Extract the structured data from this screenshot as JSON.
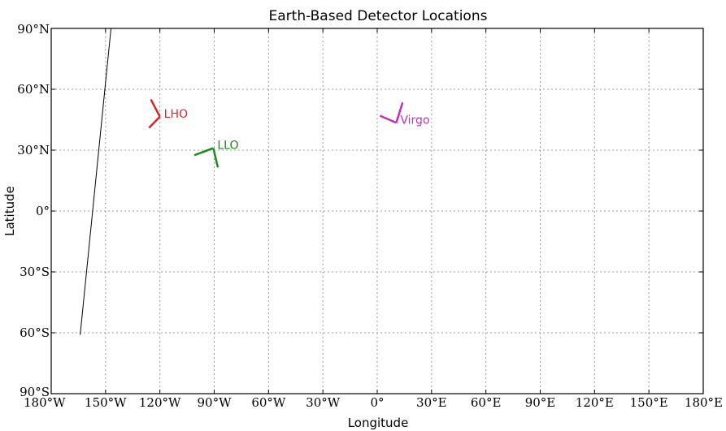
{
  "chart_data": {
    "type": "scatter",
    "title": "Earth-Based Detector Locations",
    "xlabel": "Longitude",
    "ylabel": "Latitude",
    "xlim": [
      -180,
      180
    ],
    "ylim": [
      -90,
      90
    ],
    "grid": true,
    "x_ticks": [
      {
        "value": -180,
        "label": "180°W"
      },
      {
        "value": -150,
        "label": "150°W"
      },
      {
        "value": -120,
        "label": "120°W"
      },
      {
        "value": -90,
        "label": "90°W"
      },
      {
        "value": -60,
        "label": "60°W"
      },
      {
        "value": -30,
        "label": "30°W"
      },
      {
        "value": 0,
        "label": "0°"
      },
      {
        "value": 30,
        "label": "30°E"
      },
      {
        "value": 60,
        "label": "60°E"
      },
      {
        "value": 90,
        "label": "90°E"
      },
      {
        "value": 120,
        "label": "120°E"
      },
      {
        "value": 150,
        "label": "150°E"
      },
      {
        "value": 180,
        "label": "180°E"
      }
    ],
    "y_ticks": [
      {
        "value": 90,
        "label": "90°N"
      },
      {
        "value": 60,
        "label": "60°N"
      },
      {
        "value": 30,
        "label": "30°N"
      },
      {
        "value": 0,
        "label": "0°"
      },
      {
        "value": -30,
        "label": "30°S"
      },
      {
        "value": -60,
        "label": "60°S"
      },
      {
        "value": -90,
        "label": "90°S"
      }
    ],
    "detectors": [
      {
        "name": "LHO",
        "color": "#d62728",
        "vertex": [
          -120,
          46.5
        ],
        "arm1": [
          -126,
          41
        ],
        "arm2": [
          -125,
          55
        ]
      },
      {
        "name": "LLO",
        "color": "#1a8a1a",
        "vertex": [
          -90.5,
          31
        ],
        "arm1": [
          -101,
          27.5
        ],
        "arm2": [
          -88,
          21.5
        ]
      },
      {
        "name": "Virgo",
        "color": "#c030c0",
        "vertex": [
          10.5,
          43.5
        ],
        "arm1": [
          1.5,
          47
        ],
        "arm2": [
          14,
          53.5
        ]
      }
    ],
    "line": {
      "color": "#000000",
      "points": [
        [
          -164,
          -61
        ],
        [
          -147,
          90
        ]
      ]
    }
  }
}
